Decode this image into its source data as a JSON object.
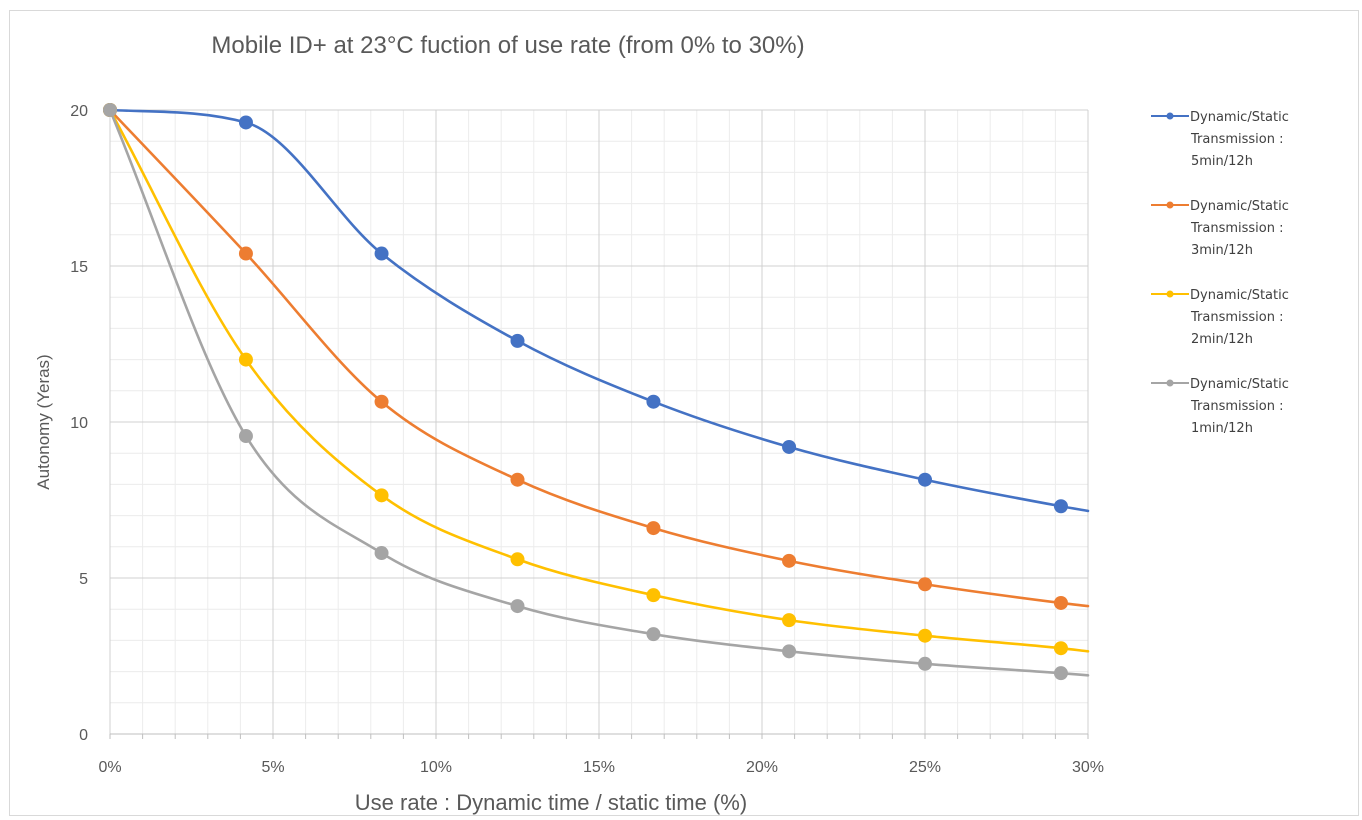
{
  "chart_data": {
    "type": "line",
    "title": "Mobile ID+ at 23°C fuction of use rate (from 0% to 30%)",
    "xlabel": "Use rate : Dynamic time / static time (%)",
    "ylabel": "Autonomy (Yeras)",
    "xlim": [
      0,
      30
    ],
    "ylim": [
      0,
      20
    ],
    "x_ticks": [
      "0%",
      "5%",
      "10%",
      "15%",
      "20%",
      "25%",
      "30%"
    ],
    "y_ticks": [
      "0",
      "5",
      "10",
      "15",
      "20"
    ],
    "grid": true,
    "legend_position": "right",
    "x": [
      0,
      4.17,
      8.33,
      12.5,
      16.67,
      20.83,
      25,
      29.17
    ],
    "series": [
      {
        "name": "Dynamic/Static Transmission : 5min/12h",
        "color": "#4472c4",
        "values": [
          20,
          19.6,
          15.4,
          12.6,
          10.65,
          9.2,
          8.15,
          7.3
        ],
        "end_value": 7.15
      },
      {
        "name": "Dynamic/Static Transmission : 3min/12h",
        "color": "#ed7d31",
        "values": [
          20,
          15.4,
          10.65,
          8.15,
          6.6,
          5.55,
          4.8,
          4.2
        ],
        "end_value": 4.1
      },
      {
        "name": "Dynamic/Static Transmission : 2min/12h",
        "color": "#ffc000",
        "values": [
          20,
          12.0,
          7.65,
          5.6,
          4.45,
          3.65,
          3.15,
          2.75
        ],
        "end_value": 2.65
      },
      {
        "name": "Dynamic/Static Transmission : 1min/12h",
        "color": "#a5a5a5",
        "values": [
          20,
          9.55,
          5.8,
          4.1,
          3.2,
          2.65,
          2.25,
          1.95
        ],
        "end_value": 1.88
      }
    ],
    "legend": [
      {
        "lines": [
          "Dynamic/Static",
          "Transmission :",
          "5min/12h"
        ]
      },
      {
        "lines": [
          "Dynamic/Static",
          "Transmission :",
          "3min/12h"
        ]
      },
      {
        "lines": [
          "Dynamic/Static",
          "Transmission :",
          "2min/12h"
        ]
      },
      {
        "lines": [
          "Dynamic/Static",
          "Transmission :",
          "1min/12h"
        ]
      }
    ]
  }
}
